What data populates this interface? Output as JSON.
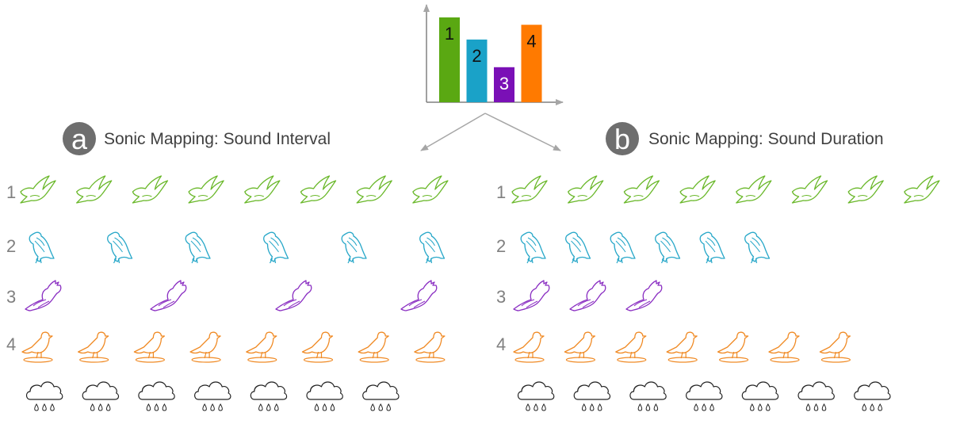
{
  "chart_data": {
    "type": "bar",
    "categories": [
      "1",
      "2",
      "3",
      "4"
    ],
    "values": [
      4.6,
      3.4,
      1.9,
      4.2
    ],
    "data_labels": [
      "1",
      "2",
      "3",
      "4"
    ],
    "colors": [
      "#5aa812",
      "#1aa2c8",
      "#7a10b6",
      "#ff7a00"
    ],
    "axis_color": "#808080",
    "ylim": [
      0,
      5.2
    ],
    "title": "",
    "xlabel": "",
    "ylabel": "",
    "grid": false
  },
  "panels": [
    {
      "badge": "a",
      "title": "Sonic Mapping: Sound Interval",
      "rows": [
        {
          "label": "1",
          "animal": "bird-flying-icon",
          "count": 8,
          "color": "#6ab82a"
        },
        {
          "label": "2",
          "animal": "eagle-perched-icon",
          "count": 6,
          "color": "#29a8c9"
        },
        {
          "label": "3",
          "animal": "bird-crested-flying-icon",
          "count": 4,
          "color": "#8a2ec2"
        },
        {
          "label": "4",
          "animal": "bird-perched-icon",
          "count": 8,
          "color": "#f08a24"
        },
        {
          "label": "",
          "animal": "rain-cloud-icon",
          "count": 7,
          "color": "#222222"
        }
      ]
    },
    {
      "badge": "b",
      "title": "Sonic Mapping: Sound Duration",
      "rows": [
        {
          "label": "1",
          "animal": "bird-flying-icon",
          "count": 8,
          "color": "#6ab82a"
        },
        {
          "label": "2",
          "animal": "eagle-perched-icon",
          "count": 6,
          "color": "#29a8c9"
        },
        {
          "label": "3",
          "animal": "bird-crested-flying-icon",
          "count": 3,
          "color": "#8a2ec2"
        },
        {
          "label": "4",
          "animal": "bird-perched-icon",
          "count": 7,
          "color": "#f08a24"
        },
        {
          "label": "",
          "animal": "rain-cloud-icon",
          "count": 7,
          "color": "#222222"
        }
      ]
    }
  ],
  "colors": {
    "badge": "#6e6e6e",
    "badge_text": "#ffffff",
    "title_text": "#404040",
    "row_label": "#808080",
    "arrow": "#a6a6a6"
  }
}
